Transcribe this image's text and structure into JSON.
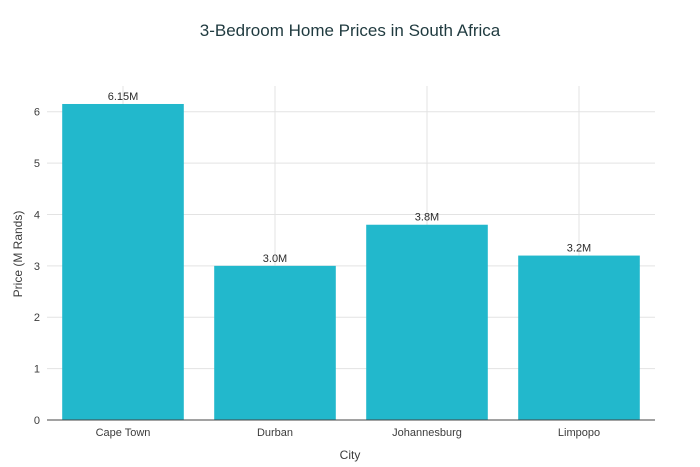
{
  "chart_data": {
    "type": "bar",
    "title": "3-Bedroom Home Prices in South Africa",
    "xlabel": "City",
    "ylabel": "Price (M Rands)",
    "categories": [
      "Cape Town",
      "Durban",
      "Johannesburg",
      "Limpopo"
    ],
    "values": [
      6.15,
      3.0,
      3.8,
      3.2
    ],
    "data_labels": [
      "6.15M",
      "3.0M",
      "3.8M",
      "3.2M"
    ],
    "yticks": [
      "0",
      "1",
      "2",
      "3",
      "4",
      "5",
      "6"
    ],
    "ylim": [
      0,
      6.5
    ],
    "grid": true,
    "legend": "none",
    "colors": {
      "bar": "#22b8cc",
      "grid": "#e3e3e3",
      "axis": "#444444",
      "title": "#1f3a3f"
    }
  }
}
